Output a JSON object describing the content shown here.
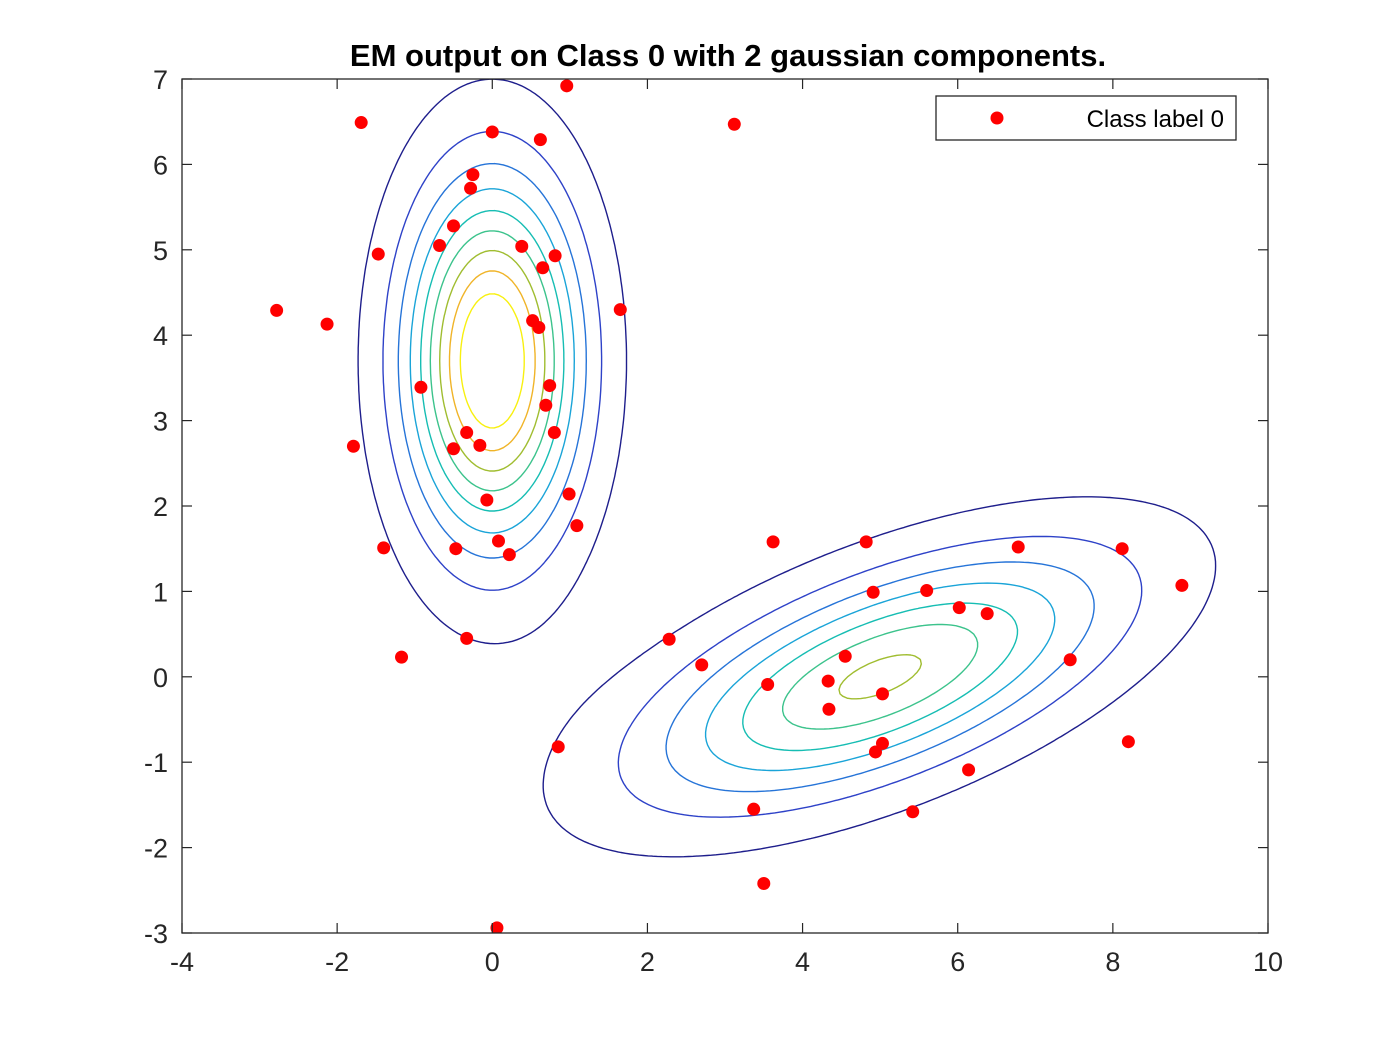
{
  "chart_data": {
    "type": "scatter",
    "title": "EM output on Class 0 with 2 gaussian components.",
    "xlabel": "",
    "ylabel": "",
    "xlim": [
      -4,
      10
    ],
    "ylim": [
      -3,
      7
    ],
    "xticks": [
      -4,
      -2,
      0,
      2,
      4,
      6,
      8,
      10
    ],
    "yticks": [
      -3,
      -2,
      -1,
      0,
      1,
      2,
      3,
      4,
      5,
      6,
      7
    ],
    "grid": false,
    "legend": {
      "position": "top-right",
      "entries": [
        "Class label 0"
      ]
    },
    "series": [
      {
        "name": "Class label 0",
        "color": "#ff0000",
        "marker": "filled-circle",
        "points": [
          [
            -2.78,
            4.29
          ],
          [
            -2.13,
            4.13
          ],
          [
            -1.69,
            6.49
          ],
          [
            -1.47,
            4.95
          ],
          [
            -1.79,
            2.7
          ],
          [
            -1.4,
            1.51
          ],
          [
            -1.17,
            0.23
          ],
          [
            -0.92,
            3.39
          ],
          [
            -0.68,
            5.05
          ],
          [
            -0.5,
            5.28
          ],
          [
            -0.5,
            2.67
          ],
          [
            -0.47,
            1.5
          ],
          [
            -0.33,
            2.86
          ],
          [
            -0.28,
            5.72
          ],
          [
            -0.25,
            5.88
          ],
          [
            -0.16,
            2.71
          ],
          [
            -0.07,
            2.07
          ],
          [
            -0.33,
            0.45
          ],
          [
            0.0,
            6.38
          ],
          [
            0.08,
            1.59
          ],
          [
            0.22,
            1.43
          ],
          [
            0.38,
            5.04
          ],
          [
            0.52,
            4.17
          ],
          [
            0.6,
            4.09
          ],
          [
            0.62,
            6.29
          ],
          [
            0.65,
            4.79
          ],
          [
            0.69,
            3.18
          ],
          [
            0.74,
            3.41
          ],
          [
            0.8,
            2.86
          ],
          [
            0.81,
            4.93
          ],
          [
            0.96,
            6.92
          ],
          [
            0.99,
            2.14
          ],
          [
            1.09,
            1.77
          ],
          [
            1.65,
            4.3
          ],
          [
            0.85,
            -0.82
          ],
          [
            0.06,
            -2.94
          ],
          [
            2.28,
            0.44
          ],
          [
            2.7,
            0.14
          ],
          [
            3.12,
            6.47
          ],
          [
            3.37,
            -1.55
          ],
          [
            3.5,
            -2.42
          ],
          [
            3.55,
            -0.09
          ],
          [
            3.62,
            1.58
          ],
          [
            4.33,
            -0.05
          ],
          [
            4.34,
            -0.38
          ],
          [
            4.55,
            0.24
          ],
          [
            4.82,
            1.58
          ],
          [
            4.91,
            0.99
          ],
          [
            4.94,
            -0.88
          ],
          [
            5.03,
            -0.2
          ],
          [
            5.03,
            -0.78
          ],
          [
            5.42,
            -1.58
          ],
          [
            5.6,
            1.01
          ],
          [
            6.02,
            0.81
          ],
          [
            6.14,
            -1.09
          ],
          [
            6.38,
            0.74
          ],
          [
            6.78,
            1.52
          ],
          [
            7.45,
            0.2
          ],
          [
            8.12,
            1.5
          ],
          [
            8.2,
            -0.76
          ],
          [
            8.89,
            1.07
          ]
        ]
      }
    ],
    "contours": {
      "description_free": true,
      "mixture": {
        "weights": [
          0.5,
          0.5
        ],
        "means": [
          [
            0.0,
            3.7
          ],
          [
            5.0,
            0.0
          ]
        ],
        "covariances": [
          [
            [
              0.55,
              0.0
            ],
            [
              0.0,
              2.0
            ]
          ],
          [
            [
              4.0,
              1.2
            ],
            [
              1.2,
              0.95
            ]
          ]
        ]
      },
      "levels": [
        0.005,
        0.0125,
        0.02,
        0.0275,
        0.035,
        0.0425,
        0.05,
        0.0575,
        0.065
      ],
      "colormap": [
        "#1e1e8c",
        "#2e42c8",
        "#2674d8",
        "#1aa4d8",
        "#16bdb3",
        "#3cc38c",
        "#a0bd30",
        "#f0b428",
        "#f8f010"
      ]
    }
  }
}
